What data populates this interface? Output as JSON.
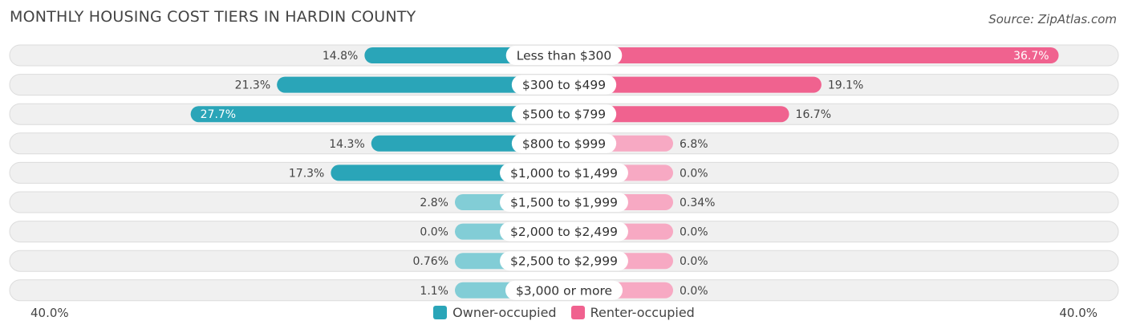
{
  "title": "MONTHLY HOUSING COST TIERS IN HARDIN COUNTY",
  "source": "Source: ZipAtlas.com",
  "colors": {
    "owner_strong": "#2aa5b8",
    "owner_light": "#82cdd6",
    "renter_strong": "#f0628f",
    "renter_light": "#f7a9c3",
    "row_bg": "#f0f0f0",
    "row_border": "#dcdcdc"
  },
  "legend": {
    "owner": "Owner-occupied",
    "renter": "Renter-occupied"
  },
  "axis": {
    "left_label": "40.0%",
    "right_label": "40.0%"
  },
  "chart_data": {
    "type": "bar",
    "orientation": "horizontal-diverging",
    "title": "MONTHLY HOUSING COST TIERS IN HARDIN COUNTY",
    "categories": [
      "Less than $300",
      "$300 to $499",
      "$500 to $799",
      "$800 to $999",
      "$1,000 to $1,499",
      "$1,500 to $1,999",
      "$2,000 to $2,499",
      "$2,500 to $2,999",
      "$3,000 or more"
    ],
    "series": [
      {
        "name": "Owner-occupied",
        "values": [
          14.8,
          21.3,
          27.7,
          14.3,
          17.3,
          2.8,
          0.0,
          0.76,
          1.1
        ],
        "labels": [
          "14.8%",
          "21.3%",
          "27.7%",
          "14.3%",
          "17.3%",
          "2.8%",
          "0.0%",
          "0.76%",
          "1.1%"
        ]
      },
      {
        "name": "Renter-occupied",
        "values": [
          36.7,
          19.1,
          16.7,
          6.8,
          0.0,
          0.34,
          0.0,
          0.0,
          0.0
        ],
        "labels": [
          "36.7%",
          "19.1%",
          "16.7%",
          "6.8%",
          "0.0%",
          "0.34%",
          "0.0%",
          "0.0%",
          "0.0%"
        ]
      }
    ],
    "xlim": [
      -40,
      40
    ],
    "legend_position": "bottom-center"
  }
}
